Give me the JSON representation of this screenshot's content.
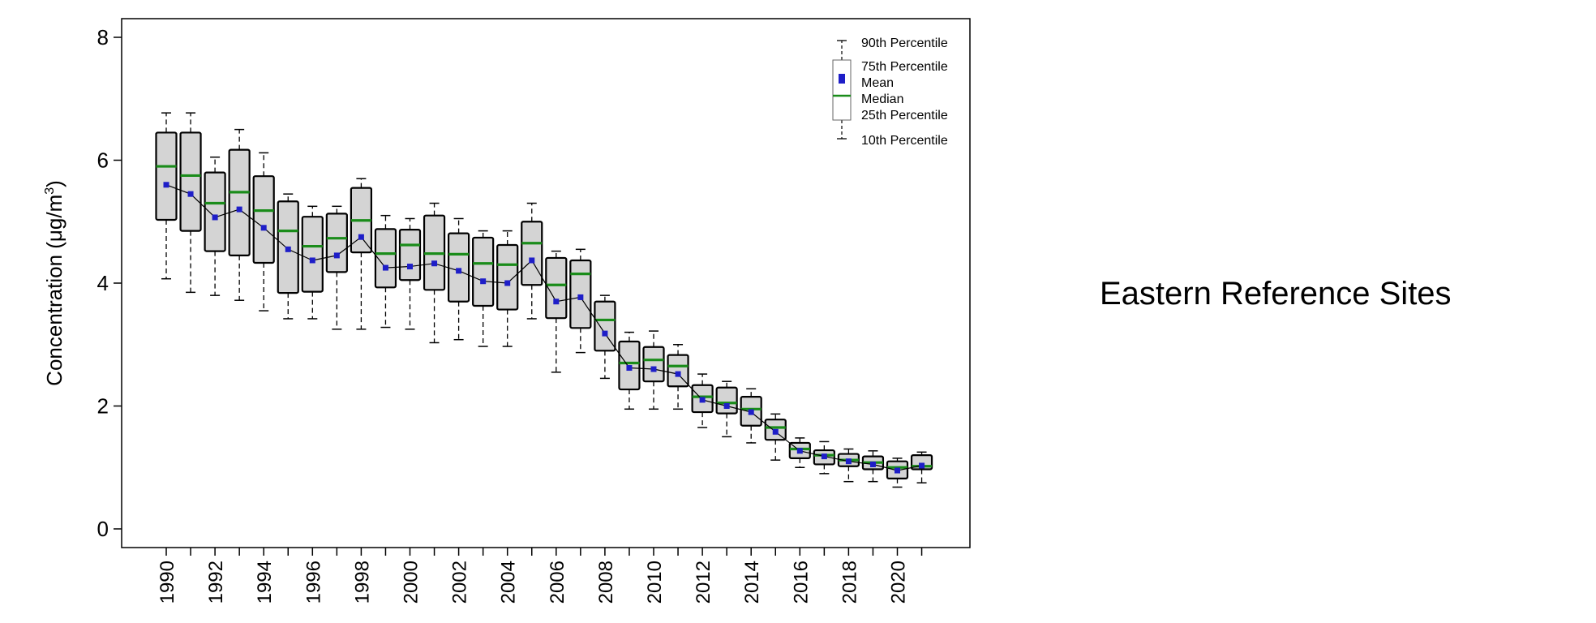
{
  "chart_data": {
    "type": "boxplot",
    "title": "",
    "side_title": "Eastern Reference Sites",
    "xlabel": "",
    "ylabel_main": "Concentration (",
    "ylabel_mu": "μ",
    "ylabel_unit": "g/m",
    "ylabel_sup": "3",
    "ylabel_close": ")",
    "ylim": [
      -0.35,
      8.3
    ],
    "yticks": [
      0,
      2,
      4,
      6,
      8
    ],
    "years": [
      1990,
      1991,
      1992,
      1993,
      1994,
      1995,
      1996,
      1997,
      1998,
      1999,
      2000,
      2001,
      2002,
      2003,
      2004,
      2005,
      2006,
      2007,
      2008,
      2009,
      2010,
      2011,
      2012,
      2013,
      2014,
      2015,
      2016,
      2017,
      2018,
      2019,
      2020,
      2021
    ],
    "xtick_labels": [
      "1990",
      "1992",
      "1994",
      "1996",
      "1998",
      "2000",
      "2002",
      "2004",
      "2006",
      "2008",
      "2010",
      "2012",
      "2014",
      "2016",
      "2018",
      "2020"
    ],
    "p90": [
      6.77,
      6.77,
      6.05,
      6.5,
      6.12,
      5.45,
      5.25,
      5.25,
      5.7,
      5.1,
      5.05,
      5.3,
      5.05,
      4.85,
      4.85,
      5.3,
      4.52,
      4.55,
      3.8,
      3.2,
      3.22,
      3.0,
      2.52,
      2.4,
      2.28,
      1.87,
      1.48,
      1.42,
      1.3,
      1.27,
      1.15,
      1.25
    ],
    "p75": [
      6.45,
      6.45,
      5.8,
      6.17,
      5.74,
      5.33,
      5.08,
      5.13,
      5.55,
      4.88,
      4.87,
      5.1,
      4.81,
      4.74,
      4.62,
      5.0,
      4.41,
      4.37,
      3.7,
      3.05,
      2.96,
      2.83,
      2.34,
      2.3,
      2.15,
      1.78,
      1.4,
      1.28,
      1.22,
      1.18,
      1.1,
      1.2
    ],
    "median": [
      5.9,
      5.75,
      5.3,
      5.48,
      5.18,
      4.85,
      4.6,
      4.73,
      5.02,
      4.48,
      4.62,
      4.48,
      4.47,
      4.32,
      4.3,
      4.65,
      3.97,
      4.15,
      3.4,
      2.7,
      2.75,
      2.65,
      2.15,
      2.05,
      1.95,
      1.65,
      1.3,
      1.2,
      1.12,
      1.08,
      1.0,
      1.02
    ],
    "mean": [
      5.6,
      5.45,
      5.07,
      5.2,
      4.9,
      4.55,
      4.37,
      4.45,
      4.75,
      4.25,
      4.27,
      4.32,
      4.2,
      4.03,
      4.0,
      4.37,
      3.7,
      3.77,
      3.18,
      2.62,
      2.6,
      2.52,
      2.1,
      2.0,
      1.9,
      1.58,
      1.27,
      1.18,
      1.1,
      1.05,
      0.95,
      1.03
    ],
    "p25": [
      5.03,
      4.85,
      4.52,
      4.45,
      4.33,
      3.84,
      3.86,
      4.18,
      4.5,
      3.93,
      4.05,
      3.89,
      3.7,
      3.63,
      3.57,
      3.97,
      3.43,
      3.27,
      2.9,
      2.27,
      2.4,
      2.32,
      1.9,
      1.88,
      1.68,
      1.45,
      1.15,
      1.05,
      1.02,
      0.97,
      0.82,
      0.97
    ],
    "p10": [
      4.07,
      3.85,
      3.8,
      3.72,
      3.55,
      3.42,
      3.42,
      3.25,
      3.25,
      3.28,
      3.25,
      3.03,
      3.08,
      2.97,
      2.97,
      3.42,
      2.55,
      2.87,
      2.45,
      1.95,
      1.95,
      1.95,
      1.65,
      1.5,
      1.4,
      1.12,
      1.0,
      0.9,
      0.77,
      0.77,
      0.68,
      0.75
    ],
    "legend": {
      "position": "top-right",
      "p90": "90th Percentile",
      "p75": "75th Percentile",
      "mean": "Mean",
      "median": "Median",
      "p25": "25th Percentile",
      "p10": "10th Percentile"
    },
    "colors": {
      "box_fill": "#d4d4d4",
      "box_stroke": "#000000",
      "median": "#1a8c1a",
      "mean": "#1e1ec8",
      "line": "#000000"
    }
  }
}
